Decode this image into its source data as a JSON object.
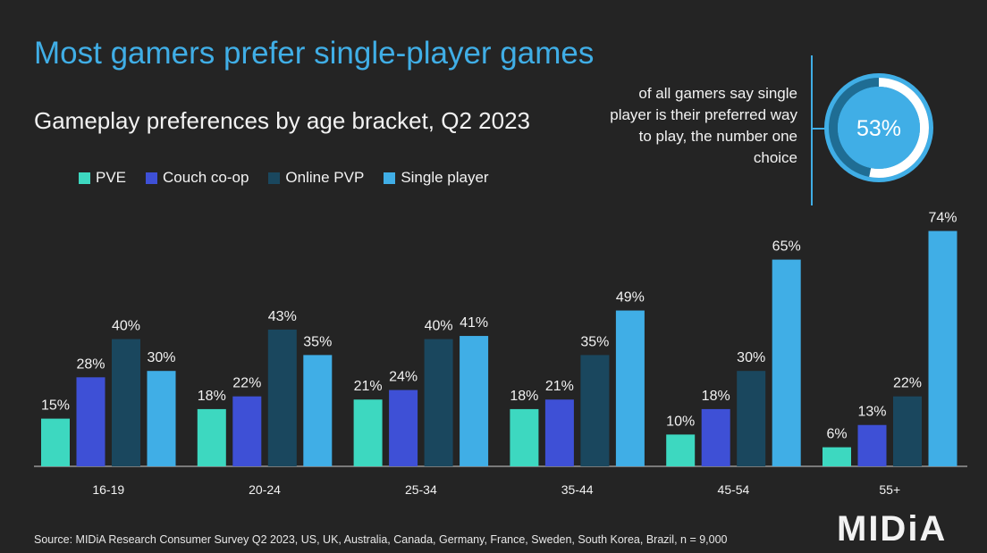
{
  "header": {
    "title": "Most gamers prefer single-player games"
  },
  "callout": {
    "value": "53%",
    "fraction": 0.53,
    "text": "of all gamers say single player is their preferred way to play, the number one choice"
  },
  "source": "Source: MIDiA Research Consumer Survey Q2 2023, US, UK, Australia, Canada, Germany, France, Sweden, South Korea, Brazil, n = 9,000",
  "logo": "MIDiA",
  "colors": {
    "background": "#242424",
    "accent": "#40aee6"
  },
  "chart_data": {
    "type": "bar",
    "title": "Gameplay preferences by age bracket, Q2 2023",
    "categories": [
      "16-19",
      "20-24",
      "25-34",
      "35-44",
      "45-54",
      "55+"
    ],
    "series": [
      {
        "name": "PVE",
        "color": "#3dd8c0",
        "values": [
          15,
          18,
          21,
          18,
          10,
          6
        ]
      },
      {
        "name": "Couch co-op",
        "color": "#3e50d6",
        "values": [
          28,
          22,
          24,
          21,
          18,
          13
        ]
      },
      {
        "name": "Online PVP",
        "color": "#1a475e",
        "values": [
          40,
          43,
          40,
          35,
          30,
          22
        ]
      },
      {
        "name": "Single player",
        "color": "#40aee6",
        "values": [
          30,
          35,
          41,
          49,
          65,
          74
        ]
      }
    ],
    "value_format": "percent",
    "ylim": [
      0,
      80
    ],
    "grid": false,
    "legend": "top-left"
  }
}
